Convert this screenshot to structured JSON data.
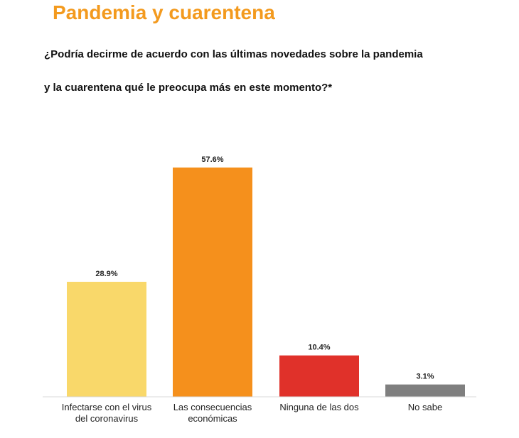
{
  "header": {
    "title": "Pandemia y cuarentena",
    "question_line1": "¿Podría decirme de acuerdo con las últimas novedades sobre la pandemia",
    "question_line2": "y la cuarentena qué le preocupa más en este momento?*"
  },
  "chart_data": {
    "type": "bar",
    "categories": [
      [
        "Infectarse con el virus",
        "del coronavirus"
      ],
      [
        "Las consecuencias",
        "económicas"
      ],
      [
        "Ninguna de las dos"
      ],
      [
        "No sabe"
      ]
    ],
    "values": [
      28.9,
      57.6,
      10.4,
      3.1
    ],
    "value_labels": [
      "28.9%",
      "57.6%",
      "10.4%",
      "3.1%"
    ],
    "colors": [
      "#f9d86a",
      "#f5901c",
      "#e0312a",
      "#7f7f7f"
    ],
    "ylim": [
      0,
      57.6
    ],
    "grid": false,
    "legend": "none"
  }
}
